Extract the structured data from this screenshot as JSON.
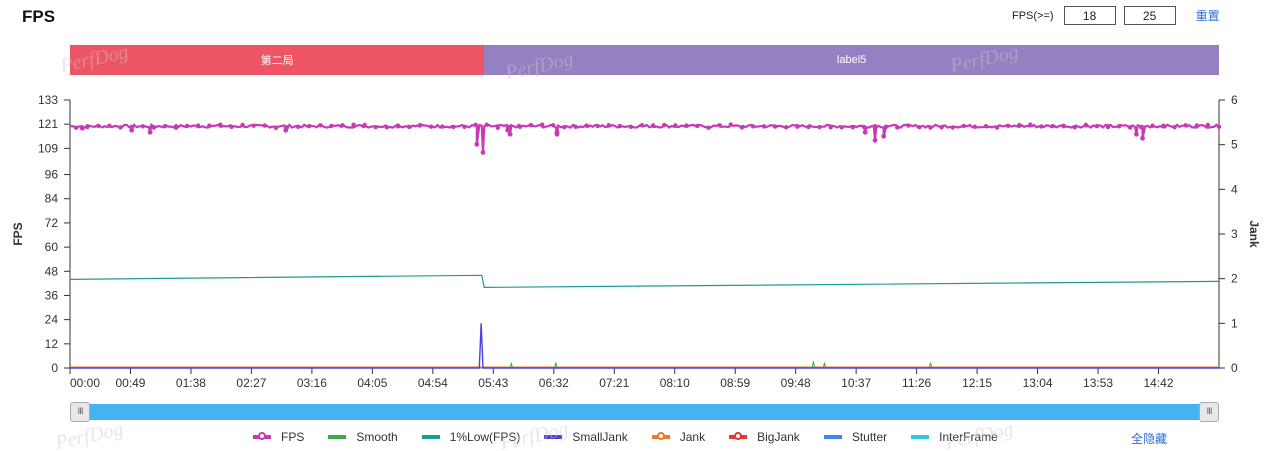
{
  "header": {
    "title": "FPS"
  },
  "thresholds": {
    "label": "FPS(>=)",
    "low_value": "18",
    "high_value": "25",
    "reset_label": "重置"
  },
  "watermark_text": "PerfDog",
  "labels": [
    {
      "name": "第二局",
      "color": "#ee5564",
      "start_frac": 0.0,
      "end_frac": 0.3605
    },
    {
      "name": "label5",
      "color": "#9580c3",
      "start_frac": 0.3605,
      "end_frac": 1.0
    }
  ],
  "legend": {
    "items": [
      {
        "name": "FPS",
        "color": "#c63bb1",
        "marker": true
      },
      {
        "name": "Smooth",
        "color": "#3caa4a",
        "marker": false
      },
      {
        "name": "1%Low(FPS)",
        "color": "#1c9a97",
        "marker": false
      },
      {
        "name": "SmallJank",
        "color": "#4c40de",
        "marker": false
      },
      {
        "name": "Jank",
        "color": "#f07a2a",
        "marker": true
      },
      {
        "name": "BigJank",
        "color": "#e03838",
        "marker": true
      },
      {
        "name": "Stutter",
        "color": "#3d88f0",
        "marker": false
      },
      {
        "name": "InterFrame",
        "color": "#33c7df",
        "marker": false
      }
    ],
    "hide_all_label": "全隐藏"
  },
  "chart_data": {
    "type": "line",
    "x_ticks": [
      "00:00",
      "00:49",
      "01:38",
      "02:27",
      "03:16",
      "04:05",
      "04:54",
      "05:43",
      "06:32",
      "07:21",
      "08:10",
      "08:59",
      "09:48",
      "10:37",
      "11:26",
      "12:15",
      "13:04",
      "13:53",
      "14:42"
    ],
    "x_range_seconds": [
      0,
      932
    ],
    "y_left": {
      "label": "FPS",
      "ticks": [
        0,
        12,
        24,
        36,
        48,
        60,
        72,
        84,
        96,
        109,
        121,
        133
      ],
      "range": [
        0,
        133
      ]
    },
    "y_right": {
      "label": "Jank",
      "ticks": [
        0,
        1,
        2,
        3,
        4,
        5,
        6
      ],
      "range": [
        0,
        6
      ]
    },
    "grid": false,
    "legend_position": "bottom",
    "series": [
      {
        "name": "FPS",
        "axis": "left",
        "base": 120,
        "dips": [
          [
            10,
            119
          ],
          [
            50,
            118
          ],
          [
            65,
            117
          ],
          [
            175,
            118
          ],
          [
            330,
            111
          ],
          [
            335,
            107
          ],
          [
            355,
            118
          ],
          [
            357,
            116
          ],
          [
            395,
            117
          ],
          [
            395,
            116
          ],
          [
            645,
            117
          ],
          [
            653,
            113
          ],
          [
            660,
            115
          ],
          [
            865,
            116
          ],
          [
            870,
            114
          ]
        ]
      },
      {
        "name": "1%Low(FPS)",
        "axis": "left",
        "points": [
          [
            0,
            44
          ],
          [
            334,
            46
          ],
          [
            336,
            40
          ],
          [
            932,
            43
          ]
        ]
      },
      {
        "name": "SmallJank",
        "axis": "right",
        "points": [
          [
            0,
            0
          ],
          [
            332,
            0
          ],
          [
            333.5,
            1
          ],
          [
            335,
            0
          ],
          [
            932,
            0
          ]
        ]
      },
      {
        "name": "Smooth",
        "axis": "right",
        "points": [
          [
            0,
            0
          ],
          [
            357,
            0
          ],
          [
            358,
            0.1
          ],
          [
            359,
            0
          ],
          [
            393,
            0
          ],
          [
            394,
            0.12
          ],
          [
            395,
            0
          ],
          [
            602,
            0
          ],
          [
            603,
            0.15
          ],
          [
            604,
            0
          ],
          [
            611,
            0
          ],
          [
            612,
            0.12
          ],
          [
            613,
            0
          ],
          [
            697,
            0
          ],
          [
            698,
            0.12
          ],
          [
            699,
            0
          ],
          [
            932,
            0
          ]
        ]
      },
      {
        "name": "Jank",
        "axis": "right",
        "points": [
          [
            0,
            0.02
          ],
          [
            932,
            0.02
          ]
        ]
      }
    ]
  }
}
